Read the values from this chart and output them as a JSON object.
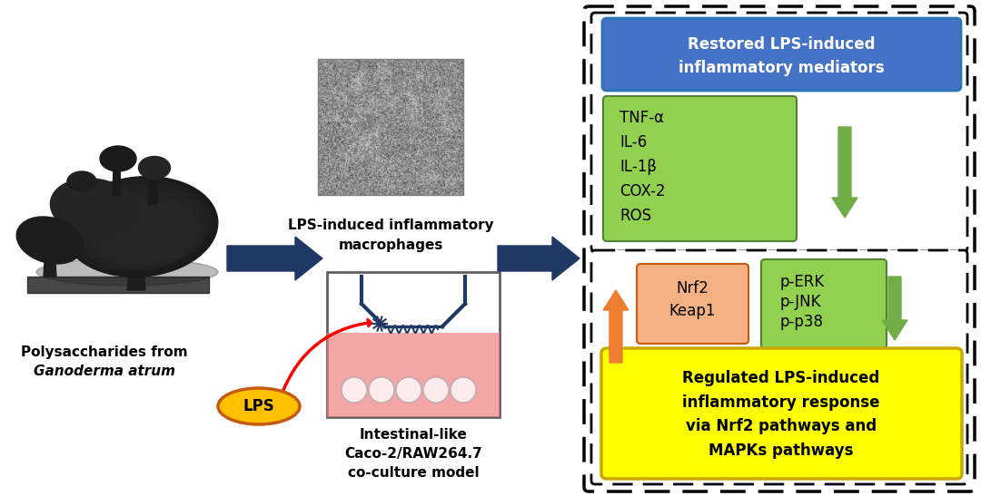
{
  "bg_color": "#ffffff",
  "left_label_line1": "Polysaccharides from",
  "left_label_line2": "Ganoderma atrum",
  "lps_label": "LPS",
  "top_center_label_line1": "LPS-induced inflammatory",
  "top_center_label_line2": "macrophages",
  "bottom_center_label_line1": "Intestinal-like",
  "bottom_center_label_line2": "Caco-2/RAW264.7",
  "bottom_center_label_line3": "co-culture model",
  "top_right_title": "Restored LPS-induced\ninflammatory mediators",
  "top_right_items": [
    "TNF-α",
    "IL-6",
    "IL-1β",
    "COX-2",
    "ROS"
  ],
  "bottom_right_nrf2_line1": "Nrf2",
  "bottom_right_nrf2_line2": "Keap1",
  "bottom_right_mapk_line1": "p-ERK",
  "bottom_right_mapk_line2": "p-JNK",
  "bottom_right_mapk_line3": "p-p38",
  "bottom_right_title": "Regulated LPS-induced\ninflammatory response\nvia Nrf2 pathways and\nMAPKs pathways",
  "blue_box_color": "#4472c4",
  "blue_box_edge": "#2e75b6",
  "green_box_color": "#92d050",
  "green_box_edge": "#538135",
  "green_arrow_color": "#70ad47",
  "orange_arrow_color": "#ed7d31",
  "salmon_box_color": "#f4b183",
  "salmon_box_edge": "#c55a11",
  "yellow_box_color": "#ffff00",
  "yellow_box_edge": "#c9a800",
  "lps_oval_color": "#ffc000",
  "lps_oval_edge": "#c55a11",
  "arrow_blue_color": "#1f3864",
  "dashed_border_color": "#000000",
  "gray_border": "#808080"
}
